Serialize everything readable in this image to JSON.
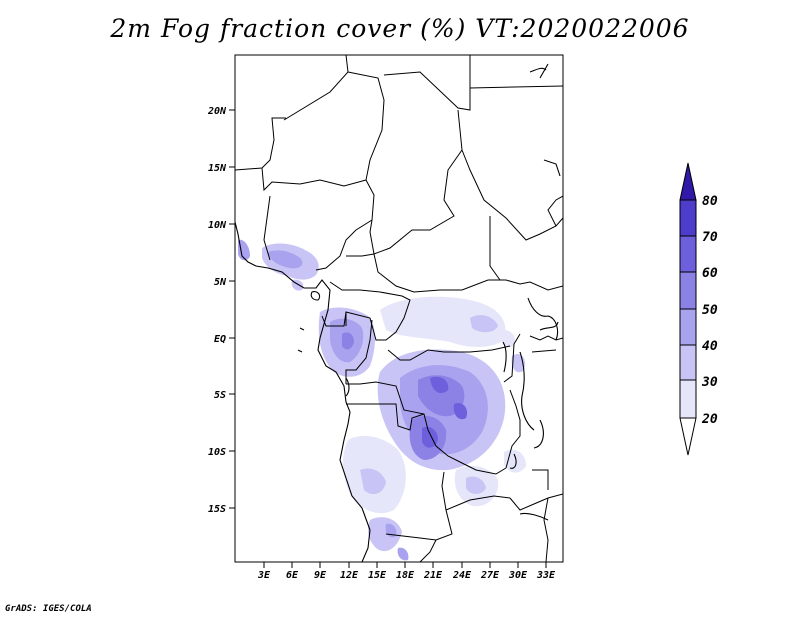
{
  "title": "2m Fog fraction cover (%) VT:2020022006",
  "credit": "GrADS: IGES/COLA",
  "lat_ticks": [
    "20N",
    "15N",
    "10N",
    "5N",
    "EQ",
    "5S",
    "10S",
    "15S"
  ],
  "lon_ticks": [
    "3E",
    "6E",
    "9E",
    "12E",
    "15E",
    "18E",
    "21E",
    "24E",
    "27E",
    "30E",
    "33E"
  ],
  "colorbar": {
    "levels": [
      "20",
      "30",
      "40",
      "50",
      "60",
      "70",
      "80"
    ],
    "colors": [
      "#e6e6fa",
      "#c8c4f5",
      "#a9a2ee",
      "#8c82e6",
      "#6e60dc",
      "#4d3dca",
      "#3218a8"
    ]
  }
}
